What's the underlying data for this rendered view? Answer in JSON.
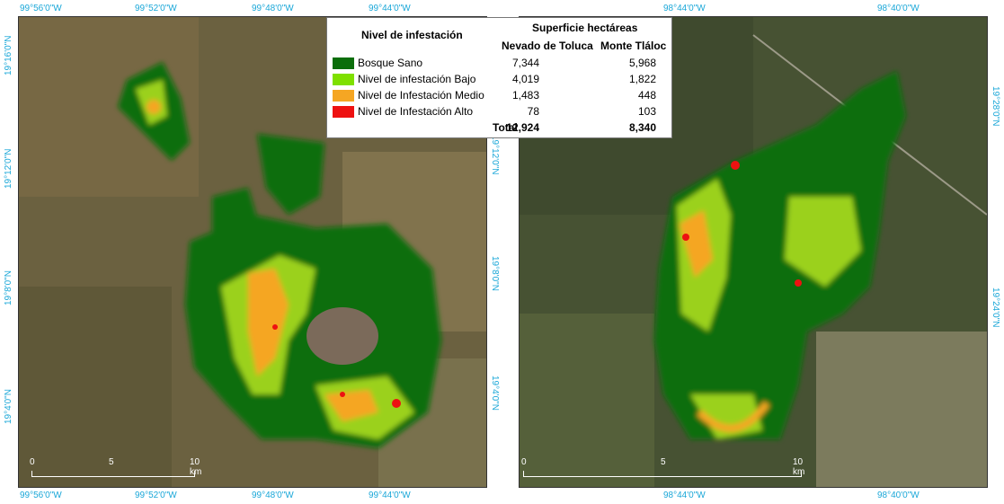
{
  "legend": {
    "title": "Nivel de infestación",
    "area_header": "Superficie hectáreas",
    "col_toluca": "Nevado de Toluca",
    "col_tlaloc": "Monte Tláloc",
    "total_label": "Total",
    "rows": [
      {
        "label": "Bosque Sano",
        "color": "#0b6e0b",
        "toluca": "7,344",
        "tlaloc": "5,968"
      },
      {
        "label": "Nivel de infestación Bajo",
        "color": "#7fe000",
        "toluca": "4,019",
        "tlaloc": "1,822"
      },
      {
        "label": "Nivel de Infestación Medio",
        "color": "#f5a623",
        "toluca": "1,483",
        "tlaloc": "448"
      },
      {
        "label": "Nivel de Infestación Alto",
        "color": "#ee1111",
        "toluca": "78",
        "tlaloc": "103"
      }
    ],
    "total_toluca": "12,924",
    "total_tlaloc": "8,340"
  },
  "left_map": {
    "top_lon": [
      "99°56'0\"W",
      "99°52'0\"W",
      "99°48'0\"W",
      "99°44'0\"W"
    ],
    "bottom_lon": [
      "99°56'0\"W",
      "99°52'0\"W",
      "99°48'0\"W",
      "99°44'0\"W"
    ],
    "left_lat": [
      "19°16'0\"N",
      "19°12'0\"N",
      "19°8'0\"N",
      "19°4'0\"N"
    ],
    "right_lat": [
      "19°12'0\"N",
      "19°8'0\"N",
      "19°4'0\"N"
    ],
    "scale": [
      "0",
      "5",
      "10 km"
    ]
  },
  "right_map": {
    "top_lon": [
      "98°44'0\"W",
      "98°40'0\"W"
    ],
    "bottom_lon": [
      "98°44'0\"W",
      "98°40'0\"W"
    ],
    "right_lat": [
      "19°28'0\"N",
      "19°24'0\"N"
    ],
    "scale": [
      "0",
      "5",
      "10 km"
    ]
  }
}
